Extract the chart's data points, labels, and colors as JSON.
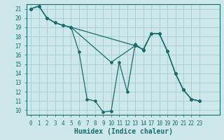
{
  "xlabel": "Humidex (Indice chaleur)",
  "bg_color": "#cce8ea",
  "grid_color": "#aacfd2",
  "line_color": "#1a6b6b",
  "series": [
    {
      "x": [
        0,
        1,
        2,
        3,
        4,
        5,
        6,
        7,
        8,
        9,
        10,
        11,
        12,
        13,
        14,
        17,
        18,
        19,
        20,
        21,
        22,
        23
      ],
      "y": [
        21,
        21.3,
        20,
        19.5,
        19.2,
        19.0,
        16.3,
        11.2,
        11.0,
        9.8,
        9.9,
        15.2,
        12.0,
        17.2,
        16.5,
        18.3,
        18.3,
        16.4,
        14.0,
        12.2,
        11.2,
        11.0
      ]
    },
    {
      "x": [
        0,
        1,
        2,
        3,
        4,
        5,
        10,
        13,
        14,
        17,
        18,
        19,
        20,
        21,
        22,
        23
      ],
      "y": [
        21,
        21.3,
        20,
        19.5,
        19.2,
        19.0,
        15.2,
        17.0,
        16.6,
        18.3,
        18.3,
        16.4,
        14.0,
        12.2,
        11.2,
        11.0
      ]
    },
    {
      "x": [
        0,
        1,
        2,
        3,
        4,
        5,
        13,
        14,
        17,
        18,
        19,
        20,
        21,
        22,
        23
      ],
      "y": [
        21,
        21.3,
        20,
        19.5,
        19.2,
        19.0,
        17.0,
        16.6,
        18.3,
        18.3,
        16.4,
        14.0,
        12.2,
        11.2,
        11.0
      ]
    }
  ],
  "xlim": [
    -0.5,
    23.5
  ],
  "ylim": [
    9.5,
    21.5
  ],
  "xticks": [
    0,
    1,
    2,
    3,
    4,
    5,
    6,
    7,
    8,
    9,
    10,
    11,
    12,
    13,
    14,
    17,
    18,
    19,
    20,
    21,
    22,
    23
  ],
  "yticks": [
    10,
    11,
    12,
    13,
    14,
    15,
    16,
    17,
    18,
    19,
    20,
    21
  ],
  "tick_fontsize": 5.5,
  "label_fontsize": 7
}
